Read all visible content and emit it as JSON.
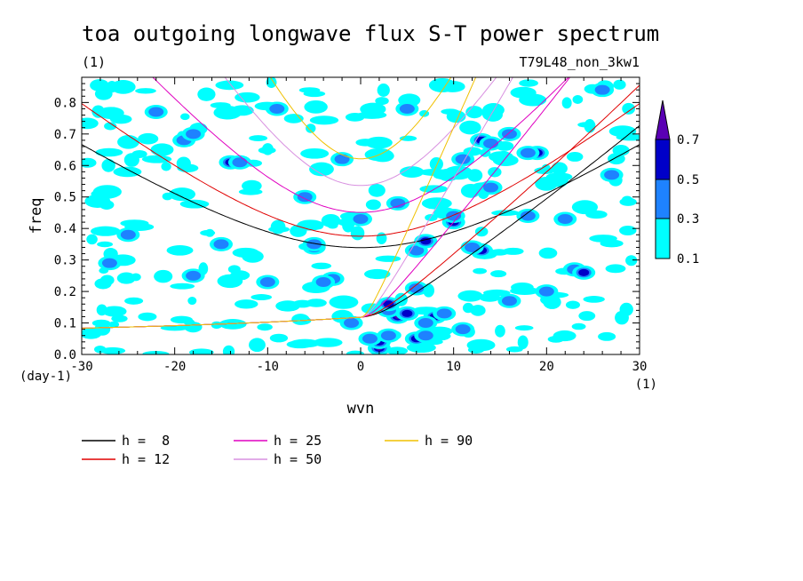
{
  "chart_data": {
    "type": "heatmap",
    "title": "toa outgoing longwave flux S-T power spectrum",
    "subtitle_unit": "(1)",
    "run_label": "T79L48_non_3kw1",
    "xlabel": "wvn",
    "ylabel": "freq",
    "x_unit": "(1)",
    "y_unit": "(day-1)",
    "xlim": [
      -30,
      30
    ],
    "ylim": [
      0,
      0.88
    ],
    "x_ticks": [
      "-30",
      "-20",
      "-10",
      "0",
      "10",
      "20",
      "30"
    ],
    "y_ticks": [
      "0.0",
      "0.1",
      "0.2",
      "0.3",
      "0.4",
      "0.5",
      "0.6",
      "0.7",
      "0.8"
    ],
    "colorbar": {
      "levels": [
        "0.1",
        "0.3",
        "0.5",
        "0.7"
      ],
      "colors": [
        "#00ffff",
        "#1e82ff",
        "#0000c8",
        "#5a00b4"
      ]
    },
    "contour_cells": [
      {
        "x": 2,
        "y": 0.02,
        "level": 3
      },
      {
        "x": 2,
        "y": 0.04,
        "level": 2
      },
      {
        "x": 1,
        "y": 0.05,
        "level": 1
      },
      {
        "x": 3,
        "y": 0.06,
        "level": 1
      },
      {
        "x": 6,
        "y": 0.05,
        "level": 2
      },
      {
        "x": 7,
        "y": 0.06,
        "level": 1
      },
      {
        "x": 4,
        "y": 0.12,
        "level": 3
      },
      {
        "x": 5,
        "y": 0.13,
        "level": 2
      },
      {
        "x": 3,
        "y": 0.14,
        "level": 1
      },
      {
        "x": 8,
        "y": 0.12,
        "level": 2
      },
      {
        "x": 9,
        "y": 0.13,
        "level": 1
      },
      {
        "x": 7,
        "y": 0.1,
        "level": 1
      },
      {
        "x": 3,
        "y": 0.16,
        "level": 2
      },
      {
        "x": 10,
        "y": 0.42,
        "level": 2
      },
      {
        "x": 10,
        "y": 0.44,
        "level": 1
      },
      {
        "x": 6,
        "y": 0.33,
        "level": 1
      },
      {
        "x": 7,
        "y": 0.36,
        "level": 2
      },
      {
        "x": 13,
        "y": 0.33,
        "level": 2
      },
      {
        "x": 12,
        "y": 0.34,
        "level": 1
      },
      {
        "x": 13,
        "y": 0.68,
        "level": 2
      },
      {
        "x": 14,
        "y": 0.67,
        "level": 1
      },
      {
        "x": 19,
        "y": 0.64,
        "level": 2
      },
      {
        "x": 18,
        "y": 0.64,
        "level": 1
      },
      {
        "x": -14,
        "y": 0.61,
        "level": 2
      },
      {
        "x": -13,
        "y": 0.61,
        "level": 1
      },
      {
        "x": -5,
        "y": 0.34,
        "level": 2
      },
      {
        "x": -5,
        "y": 0.35,
        "level": 1
      },
      {
        "x": -3,
        "y": 0.24,
        "level": 1
      },
      {
        "x": -4,
        "y": 0.23,
        "level": 1
      },
      {
        "x": 16,
        "y": 0.17,
        "level": 1
      },
      {
        "x": 23,
        "y": 0.27,
        "level": 1
      },
      {
        "x": 24,
        "y": 0.26,
        "level": 2
      },
      {
        "x": 22,
        "y": 0.43,
        "level": 1
      },
      {
        "x": -19,
        "y": 0.68,
        "level": 1
      },
      {
        "x": -18,
        "y": 0.7,
        "level": 1
      },
      {
        "x": 6,
        "y": 0.21,
        "level": 1
      },
      {
        "x": 18,
        "y": 0.44,
        "level": 1
      },
      {
        "x": -1,
        "y": 0.1,
        "level": 1
      },
      {
        "x": 11,
        "y": 0.08,
        "level": 1
      },
      {
        "x": -15,
        "y": 0.35,
        "level": 1
      },
      {
        "x": -25,
        "y": 0.38,
        "level": 1
      },
      {
        "x": 0,
        "y": 0.43,
        "level": 1
      },
      {
        "x": 11,
        "y": 0.62,
        "level": 1
      },
      {
        "x": 5,
        "y": 0.78,
        "level": 1
      },
      {
        "x": -9,
        "y": 0.78,
        "level": 1
      },
      {
        "x": -22,
        "y": 0.77,
        "level": 1
      },
      {
        "x": 14,
        "y": 0.53,
        "level": 1
      },
      {
        "x": -2,
        "y": 0.62,
        "level": 1
      },
      {
        "x": 26,
        "y": 0.84,
        "level": 1
      },
      {
        "x": -27,
        "y": 0.29,
        "level": 1
      },
      {
        "x": 20,
        "y": 0.2,
        "level": 1
      },
      {
        "x": 27,
        "y": 0.57,
        "level": 1
      },
      {
        "x": -10,
        "y": 0.23,
        "level": 1
      },
      {
        "x": -18,
        "y": 0.25,
        "level": 1
      },
      {
        "x": 4,
        "y": 0.48,
        "level": 1
      },
      {
        "x": 16,
        "y": 0.7,
        "level": 1
      },
      {
        "x": -6,
        "y": 0.5,
        "level": 1
      }
    ],
    "series": [
      {
        "name": "h =  8",
        "equivalent_depth_m": 8,
        "color": "#000000"
      },
      {
        "name": "h = 12",
        "equivalent_depth_m": 12,
        "color": "#e00000"
      },
      {
        "name": "h = 25",
        "equivalent_depth_m": 25,
        "color": "#e000c0"
      },
      {
        "name": "h = 50",
        "equivalent_depth_m": 50,
        "color": "#d890e0"
      },
      {
        "name": "h = 90",
        "equivalent_depth_m": 90,
        "color": "#f0c000"
      }
    ]
  }
}
